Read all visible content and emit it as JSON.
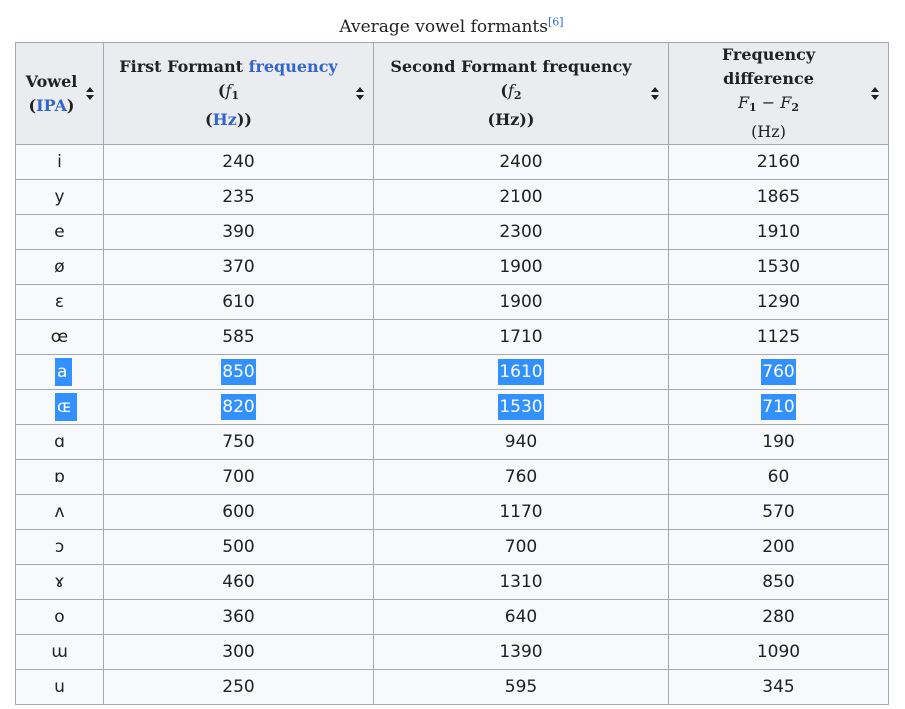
{
  "caption": {
    "text": "Average vowel formants",
    "ref": "[6]"
  },
  "headers": {
    "vowel": {
      "line1": "Vowel",
      "open": "(",
      "link": "IPA",
      "close": ")"
    },
    "f1": {
      "prefix": "First Formant ",
      "link": "frequency",
      "mid": " (",
      "sym": "f",
      "sub": "1",
      "open2": "(",
      "unit_link": "Hz",
      "close2": "))"
    },
    "f2": {
      "prefix": "Second Formant frequency (",
      "sym": "f",
      "sub": "2",
      "unit": "(Hz))"
    },
    "diff": {
      "line1": "Frequency difference",
      "sym1": "F",
      "sub1": "1",
      "minus": " − ",
      "sym2": "F",
      "sub2": "2",
      "unit": "(Hz)"
    }
  },
  "sort_icon": "sort-arrows-icon",
  "selection_color": "#3390ff",
  "link_color": "#3366cc",
  "rows": [
    {
      "vowel": "i",
      "f1": "240",
      "f2": "2400",
      "diff": "2160"
    },
    {
      "vowel": "y",
      "f1": "235",
      "f2": "2100",
      "diff": "1865"
    },
    {
      "vowel": "e",
      "f1": "390",
      "f2": "2300",
      "diff": "1910"
    },
    {
      "vowel": "ø",
      "f1": "370",
      "f2": "1900",
      "diff": "1530"
    },
    {
      "vowel": "ɛ",
      "f1": "610",
      "f2": "1900",
      "diff": "1290"
    },
    {
      "vowel": "œ",
      "f1": "585",
      "f2": "1710",
      "diff": "1125"
    },
    {
      "vowel": "a",
      "f1": "850",
      "f2": "1610",
      "diff": "760",
      "selected": true
    },
    {
      "vowel": "ɶ",
      "f1": "820",
      "f2": "1530",
      "diff": "710",
      "selected": true
    },
    {
      "vowel": "ɑ",
      "f1": "750",
      "f2": "940",
      "diff": "190"
    },
    {
      "vowel": "ɒ",
      "f1": "700",
      "f2": "760",
      "diff": "60"
    },
    {
      "vowel": "ʌ",
      "f1": "600",
      "f2": "1170",
      "diff": "570"
    },
    {
      "vowel": "ɔ",
      "f1": "500",
      "f2": "700",
      "diff": "200"
    },
    {
      "vowel": "ɤ",
      "f1": "460",
      "f2": "1310",
      "diff": "850"
    },
    {
      "vowel": "o",
      "f1": "360",
      "f2": "640",
      "diff": "280"
    },
    {
      "vowel": "ɯ",
      "f1": "300",
      "f2": "1390",
      "diff": "1090"
    },
    {
      "vowel": "u",
      "f1": "250",
      "f2": "595",
      "diff": "345"
    }
  ]
}
